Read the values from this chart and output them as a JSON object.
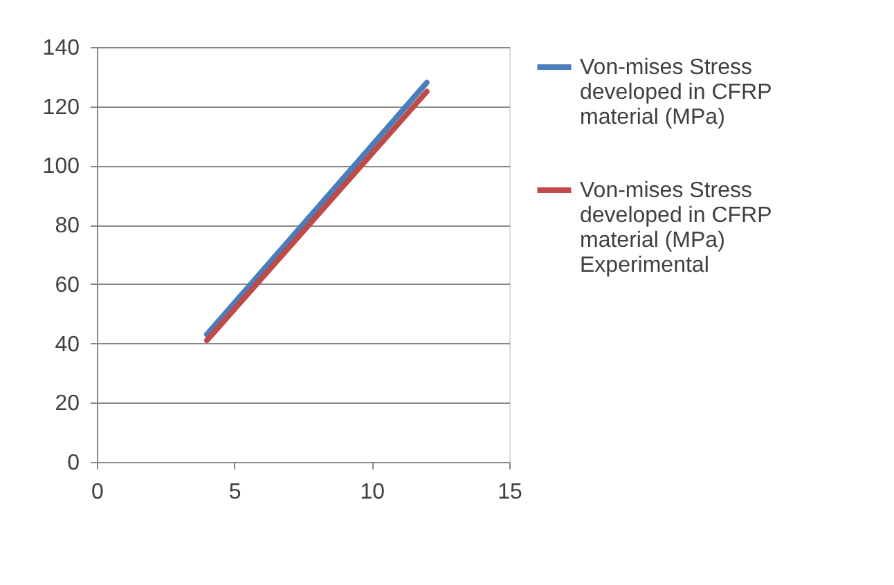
{
  "chart_data": {
    "type": "line",
    "x": [
      4,
      12
    ],
    "xlim": [
      0,
      15
    ],
    "xticks": [
      0,
      5,
      10,
      15
    ],
    "ylim": [
      0,
      140
    ],
    "yticks": [
      0,
      20,
      40,
      60,
      80,
      100,
      120,
      140
    ],
    "grid": "y",
    "legend": "right",
    "marker": "none",
    "line_style": "solid",
    "series": [
      {
        "name": "Von-mises Stress developed in CFRP material (MPa)",
        "color": "#4a7ebb",
        "values": [
          43,
          128
        ]
      },
      {
        "name": "Von-mises Stress developed in CFRP material (MPa) Experimental",
        "color": "#be4b48",
        "values": [
          41,
          125
        ]
      }
    ]
  }
}
